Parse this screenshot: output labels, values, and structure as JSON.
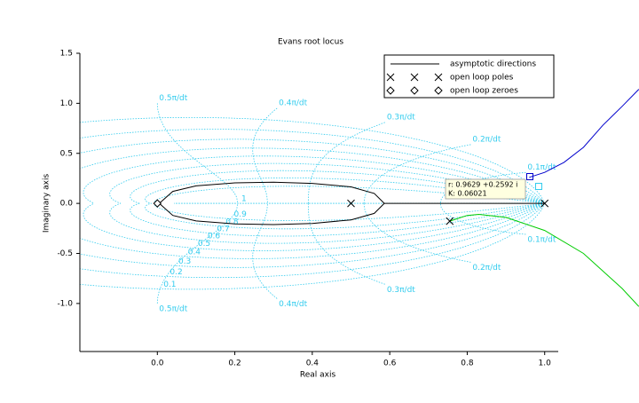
{
  "chart_data": {
    "type": "rootlocus",
    "title": "Evans root locus",
    "x_label": "Real axis",
    "y_label": "Imaginary axis",
    "xlim": [
      -0.2,
      1.035
    ],
    "ylim": [
      -1.48,
      1.5
    ],
    "xticks": [
      {
        "value": 0,
        "label": "0.0"
      },
      0.2,
      0.4,
      0.6,
      0.8,
      {
        "value": 1,
        "label": "1.0"
      }
    ],
    "yticks": [
      {
        "value": -1,
        "label": "-1.0"
      },
      -0.5,
      {
        "value": 0,
        "label": "0.0"
      },
      0.5,
      {
        "value": 1,
        "label": "1.0"
      },
      1.5
    ],
    "grid_color": "#33ccee",
    "damping_grid": [
      1,
      0.9,
      0.8,
      0.7,
      0.6,
      0.5,
      0.4,
      0.3,
      0.2,
      0.1
    ],
    "frequency_grid": [
      {
        "value": 0.1,
        "label": "0.1π/dt"
      },
      {
        "value": 0.2,
        "label": "0.2π/dt"
      },
      {
        "value": 0.3,
        "label": "0.3π/dt"
      },
      {
        "value": 0.4,
        "label": "0.4π/dt"
      },
      {
        "value": 0.5,
        "label": "0.5π/dt"
      }
    ],
    "branches": [
      {
        "color": "#000000",
        "x": [
          0.586,
          0.56,
          0.5,
          0.4,
          0.3,
          0.2,
          0.1,
          0.04,
          0.005
        ],
        "y": [
          0,
          0.1,
          0.165,
          0.2,
          0.212,
          0.205,
          0.175,
          0.12,
          0.0
        ]
      },
      {
        "color": "#000000",
        "x": [
          0.586,
          0.56,
          0.5,
          0.4,
          0.3,
          0.2,
          0.1,
          0.04,
          0.005
        ],
        "y": [
          0,
          -0.1,
          -0.165,
          -0.2,
          -0.212,
          -0.205,
          -0.175,
          -0.12,
          0.0
        ]
      },
      {
        "color": "#000000",
        "x": [
          0.586,
          1.0
        ],
        "y": [
          0,
          0
        ]
      },
      {
        "color": "#0000cc",
        "x": [
          0.96,
          1.0,
          1.05,
          1.1,
          1.15,
          1.2,
          1.243
        ],
        "y": [
          0.26,
          0.31,
          0.41,
          0.56,
          0.78,
          0.97,
          1.14
        ]
      },
      {
        "color": "#00cc00",
        "x": [
          0.755,
          0.8,
          0.83,
          0.9,
          1.0,
          1.1,
          1.2,
          1.243
        ],
        "y": [
          -0.177,
          -0.12,
          -0.11,
          -0.14,
          -0.27,
          -0.5,
          -0.85,
          -1.03
        ]
      }
    ],
    "series": [
      {
        "name": "open loop poles",
        "marker": "x",
        "color": "#000000",
        "x": [
          0.5,
          1.0,
          0.755
        ],
        "y": [
          0,
          0,
          -0.177
        ]
      },
      {
        "name": "open loop zeroes",
        "marker": "diamond",
        "color": "#000000",
        "x": [
          0
        ],
        "y": [
          0
        ]
      }
    ],
    "legend": {
      "position": "upper right",
      "entries": [
        "asymptotic directions",
        "open loop poles",
        "open loop zeroes"
      ]
    },
    "datatip": [
      "r: 0.9629 +0.2592 i",
      "K: 0.06021"
    ]
  }
}
